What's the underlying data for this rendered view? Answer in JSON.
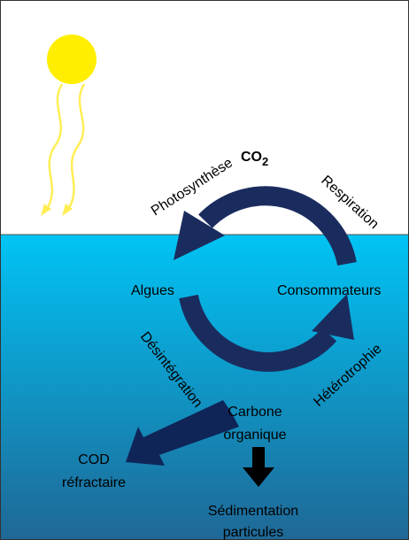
{
  "co2": {
    "label": "CO",
    "subscript": "2"
  },
  "edges": {
    "photosynthesis": "Photosynthèse",
    "respiration": "Respiration",
    "disintegration": "Désintégration",
    "heterotrophy": "Hétérotrophie"
  },
  "nodes": {
    "algae": "Algues",
    "consumers": "Consommateurs",
    "organic_carbon": [
      "Carbone",
      "organique"
    ],
    "refractory_doc": [
      "COD",
      "réfractaire"
    ],
    "sedimentation": [
      "Sédimentation",
      "particules"
    ]
  }
}
